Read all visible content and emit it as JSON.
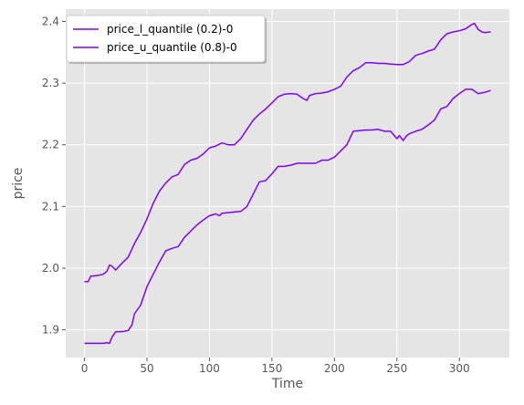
{
  "chart_data": {
    "type": "line",
    "xlabel": "Time",
    "ylabel": "price",
    "xlim": [
      -15,
      340
    ],
    "ylim": [
      1.855,
      2.42
    ],
    "x_ticks": [
      0,
      50,
      100,
      150,
      200,
      250,
      300
    ],
    "y_ticks": [
      1.9,
      2.0,
      2.1,
      2.2,
      2.3,
      2.4
    ],
    "x_tick_labels": [
      "0",
      "50",
      "100",
      "150",
      "200",
      "250",
      "300"
    ],
    "y_tick_labels": [
      "1.9",
      "2.0",
      "2.1",
      "2.2",
      "2.3",
      "2.4"
    ],
    "grid": true,
    "legend_position": "top-left",
    "colors": {
      "background": "#e5e5e5",
      "grid": "#ffffff",
      "series": "#7f00ff"
    },
    "series": [
      {
        "name": "price_l_quantile (0.2)-0",
        "x": [
          0,
          5,
          10,
          15,
          18,
          20,
          22,
          25,
          30,
          35,
          38,
          40,
          45,
          50,
          55,
          60,
          65,
          70,
          75,
          80,
          85,
          90,
          95,
          100,
          105,
          108,
          110,
          115,
          120,
          125,
          130,
          135,
          140,
          145,
          150,
          155,
          160,
          165,
          170,
          175,
          180,
          185,
          190,
          195,
          200,
          205,
          210,
          215,
          220,
          225,
          230,
          235,
          240,
          245,
          250,
          252,
          255,
          258,
          260,
          265,
          270,
          275,
          280,
          285,
          290,
          295,
          300,
          305,
          310,
          315,
          320,
          325
        ],
        "y": [
          1.878,
          1.878,
          1.878,
          1.878,
          1.879,
          1.878,
          1.888,
          1.897,
          1.897,
          1.899,
          1.908,
          1.926,
          1.94,
          1.97,
          1.99,
          2.01,
          2.028,
          2.032,
          2.035,
          2.05,
          2.06,
          2.07,
          2.078,
          2.085,
          2.088,
          2.085,
          2.089,
          2.09,
          2.091,
          2.092,
          2.1,
          2.12,
          2.14,
          2.142,
          2.153,
          2.165,
          2.165,
          2.167,
          2.17,
          2.17,
          2.17,
          2.17,
          2.175,
          2.175,
          2.18,
          2.19,
          2.2,
          2.222,
          2.223,
          2.224,
          2.224,
          2.225,
          2.222,
          2.222,
          2.21,
          2.215,
          2.207,
          2.215,
          2.218,
          2.222,
          2.225,
          2.232,
          2.24,
          2.258,
          2.262,
          2.275,
          2.283,
          2.29,
          2.29,
          2.283,
          2.285,
          2.288
        ]
      },
      {
        "name": "price_u_quantile (0.8)-0",
        "x": [
          0,
          3,
          5,
          10,
          15,
          18,
          20,
          22,
          25,
          30,
          35,
          40,
          45,
          50,
          55,
          60,
          65,
          70,
          75,
          80,
          85,
          90,
          95,
          100,
          105,
          110,
          115,
          120,
          125,
          130,
          135,
          140,
          145,
          150,
          155,
          160,
          165,
          170,
          175,
          178,
          180,
          185,
          190,
          195,
          200,
          205,
          210,
          215,
          220,
          225,
          230,
          235,
          240,
          245,
          250,
          255,
          260,
          265,
          270,
          275,
          280,
          285,
          290,
          295,
          300,
          305,
          310,
          312,
          315,
          318,
          320,
          325
        ],
        "y": [
          1.978,
          1.978,
          1.987,
          1.988,
          1.99,
          1.995,
          2.005,
          2.003,
          1.997,
          2.008,
          2.018,
          2.04,
          2.058,
          2.08,
          2.105,
          2.125,
          2.138,
          2.148,
          2.152,
          2.168,
          2.175,
          2.178,
          2.185,
          2.195,
          2.198,
          2.203,
          2.2,
          2.2,
          2.21,
          2.225,
          2.24,
          2.25,
          2.258,
          2.268,
          2.278,
          2.282,
          2.283,
          2.282,
          2.275,
          2.272,
          2.28,
          2.283,
          2.284,
          2.286,
          2.29,
          2.295,
          2.31,
          2.32,
          2.325,
          2.333,
          2.333,
          2.332,
          2.332,
          2.331,
          2.33,
          2.33,
          2.335,
          2.345,
          2.348,
          2.352,
          2.355,
          2.37,
          2.38,
          2.383,
          2.385,
          2.388,
          2.395,
          2.397,
          2.387,
          2.383,
          2.382,
          2.383
        ]
      }
    ]
  }
}
